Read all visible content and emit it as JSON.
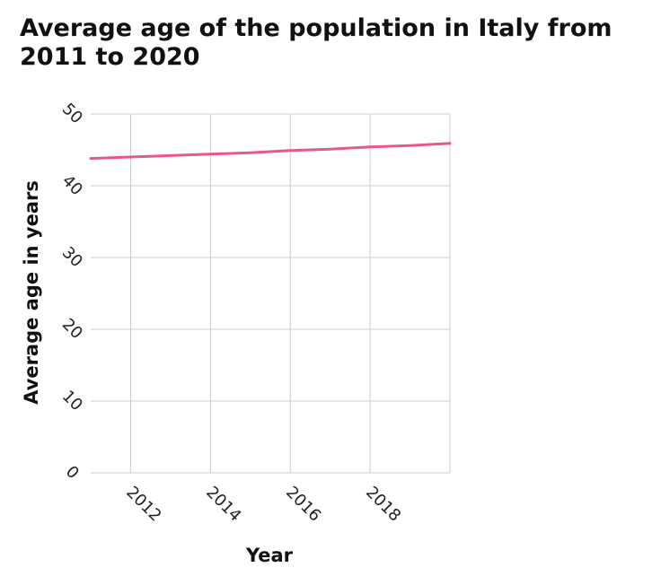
{
  "chart_data": {
    "type": "line",
    "title": "Average age of the population in Italy from 2011 to 2020",
    "xlabel": "Year",
    "ylabel": "Average age in years",
    "xlim": [
      2011,
      2020
    ],
    "ylim": [
      0,
      50
    ],
    "xticks": [
      2012,
      2014,
      2016,
      2018
    ],
    "yticks": [
      0,
      10,
      20,
      30,
      40,
      50
    ],
    "grid": true,
    "series": [
      {
        "color": "#e8578a",
        "x": [
          2011,
          2012,
          2013,
          2014,
          2015,
          2016,
          2017,
          2018,
          2019,
          2020
        ],
        "values": [
          43.8,
          44.0,
          44.2,
          44.4,
          44.6,
          44.9,
          45.1,
          45.4,
          45.6,
          45.9
        ]
      }
    ]
  },
  "colors": {
    "grid": "#cccccc",
    "axis": "#bbbbbb"
  }
}
